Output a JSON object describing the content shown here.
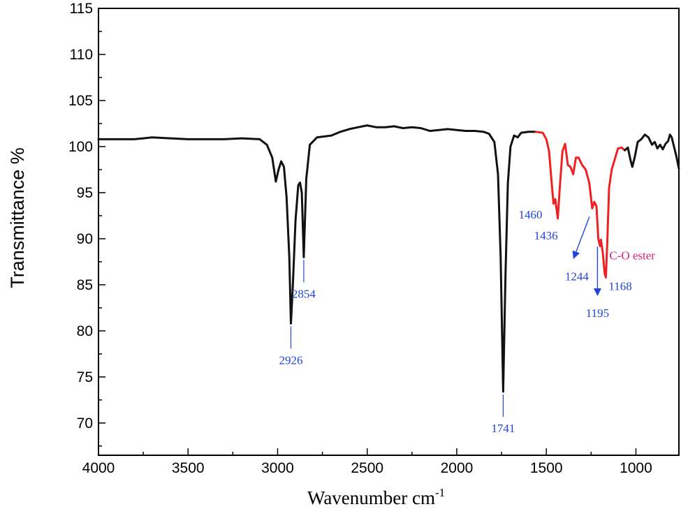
{
  "chart_data": {
    "type": "line",
    "title": "",
    "xlabel": "Wavenumber cm",
    "xlabel_superscript": "-1",
    "ylabel": "Transmittance %",
    "xlim": [
      4000,
      760
    ],
    "ylim": [
      66.5,
      115
    ],
    "x_reversed": true,
    "xticks": [
      4000,
      3500,
      3000,
      2500,
      2000,
      1500,
      1000
    ],
    "yticks": [
      70,
      75,
      80,
      85,
      90,
      95,
      100,
      105,
      110,
      115
    ],
    "grid": false,
    "legend": "none",
    "colors": {
      "main": "#111111",
      "highlight": "#ee2222",
      "label": "#2244dd",
      "ester": "#e0207a"
    },
    "series": [
      {
        "color": "#111111",
        "points": [
          [
            4000,
            100.8
          ],
          [
            3900,
            100.8
          ],
          [
            3800,
            100.8
          ],
          [
            3750,
            100.9
          ],
          [
            3700,
            101.0
          ],
          [
            3600,
            100.9
          ],
          [
            3500,
            100.8
          ],
          [
            3400,
            100.8
          ],
          [
            3300,
            100.8
          ],
          [
            3200,
            100.9
          ],
          [
            3100,
            100.8
          ],
          [
            3060,
            100.2
          ],
          [
            3030,
            98.8
          ],
          [
            3010,
            96.2
          ],
          [
            2995,
            97.5
          ],
          [
            2980,
            98.4
          ],
          [
            2965,
            97.8
          ],
          [
            2950,
            94.5
          ],
          [
            2935,
            88.0
          ],
          [
            2926,
            80.8
          ],
          [
            2915,
            85.0
          ],
          [
            2900,
            92.0
          ],
          [
            2885,
            95.8
          ],
          [
            2875,
            96.1
          ],
          [
            2865,
            95.0
          ],
          [
            2854,
            88.0
          ],
          [
            2840,
            96.5
          ],
          [
            2820,
            100.2
          ],
          [
            2780,
            101.0
          ],
          [
            2700,
            101.2
          ],
          [
            2650,
            101.6
          ],
          [
            2600,
            101.9
          ],
          [
            2550,
            102.1
          ],
          [
            2500,
            102.3
          ],
          [
            2450,
            102.1
          ],
          [
            2400,
            102.1
          ],
          [
            2350,
            102.2
          ],
          [
            2300,
            102.0
          ],
          [
            2250,
            102.1
          ],
          [
            2200,
            102.0
          ],
          [
            2150,
            101.7
          ],
          [
            2100,
            101.8
          ],
          [
            2050,
            101.9
          ],
          [
            2000,
            101.8
          ],
          [
            1950,
            101.7
          ],
          [
            1900,
            101.7
          ],
          [
            1850,
            101.6
          ],
          [
            1820,
            101.4
          ],
          [
            1790,
            100.5
          ],
          [
            1770,
            97.0
          ],
          [
            1755,
            88.0
          ],
          [
            1741,
            73.4
          ],
          [
            1728,
            86.0
          ],
          [
            1715,
            96.0
          ],
          [
            1700,
            100.0
          ],
          [
            1680,
            101.2
          ],
          [
            1660,
            101.0
          ],
          [
            1640,
            101.5
          ],
          [
            1600,
            101.6
          ],
          [
            1560,
            101.6
          ]
        ]
      },
      {
        "color": "#ee2222",
        "points": [
          [
            1560,
            101.6
          ],
          [
            1520,
            101.5
          ],
          [
            1500,
            100.8
          ],
          [
            1485,
            99.5
          ],
          [
            1470,
            96.0
          ],
          [
            1460,
            93.8
          ],
          [
            1450,
            94.3
          ],
          [
            1436,
            92.2
          ],
          [
            1425,
            95.5
          ],
          [
            1410,
            99.5
          ],
          [
            1395,
            100.3
          ],
          [
            1380,
            98.0
          ],
          [
            1365,
            97.8
          ],
          [
            1350,
            97.0
          ],
          [
            1335,
            98.8
          ],
          [
            1320,
            98.8
          ],
          [
            1300,
            98.0
          ],
          [
            1280,
            97.5
          ],
          [
            1260,
            96.0
          ],
          [
            1244,
            93.3
          ],
          [
            1232,
            94.0
          ],
          [
            1220,
            93.5
          ],
          [
            1210,
            90.0
          ],
          [
            1200,
            89.2
          ],
          [
            1195,
            89.9
          ],
          [
            1185,
            88.5
          ],
          [
            1175,
            86.3
          ],
          [
            1168,
            85.8
          ],
          [
            1160,
            89.5
          ],
          [
            1150,
            95.5
          ],
          [
            1135,
            97.5
          ],
          [
            1120,
            98.5
          ],
          [
            1100,
            99.8
          ],
          [
            1080,
            99.9
          ],
          [
            1062,
            99.6
          ]
        ]
      },
      {
        "color": "#111111",
        "points": [
          [
            1062,
            99.6
          ],
          [
            1045,
            99.9
          ],
          [
            1030,
            98.5
          ],
          [
            1020,
            97.8
          ],
          [
            1005,
            99.0
          ],
          [
            990,
            100.5
          ],
          [
            970,
            100.8
          ],
          [
            950,
            101.3
          ],
          [
            930,
            101.0
          ],
          [
            910,
            100.2
          ],
          [
            895,
            100.5
          ],
          [
            880,
            99.8
          ],
          [
            865,
            100.2
          ],
          [
            850,
            99.7
          ],
          [
            835,
            100.3
          ],
          [
            820,
            100.6
          ],
          [
            810,
            101.3
          ],
          [
            800,
            101.0
          ],
          [
            790,
            100.2
          ],
          [
            775,
            99.0
          ],
          [
            760,
            97.6
          ]
        ]
      }
    ],
    "annotations": [
      {
        "text": "2926",
        "x": 2926,
        "y": 80.8,
        "pos": "below",
        "line": true
      },
      {
        "text": "2854",
        "x": 2854,
        "y": 88.0,
        "pos": "below",
        "line": true
      },
      {
        "text": "1741",
        "x": 1741,
        "y": 73.4,
        "pos": "below",
        "line": true
      },
      {
        "text": "1460",
        "x": 1460,
        "y": 93.8,
        "pos": "left"
      },
      {
        "text": "1436",
        "x": 1436,
        "y": 92.2,
        "pos": "below-left"
      },
      {
        "text": "1244",
        "x": 1244,
        "y": 93.3,
        "pos": "arrow"
      },
      {
        "text": "1195",
        "x": 1195,
        "y": 89.9,
        "pos": "arrow-down"
      },
      {
        "text": "1168",
        "x": 1168,
        "y": 85.8,
        "pos": "right"
      },
      {
        "text": "C-O ester",
        "x": 1168,
        "y": 88.0,
        "pos": "right-upper"
      }
    ]
  }
}
